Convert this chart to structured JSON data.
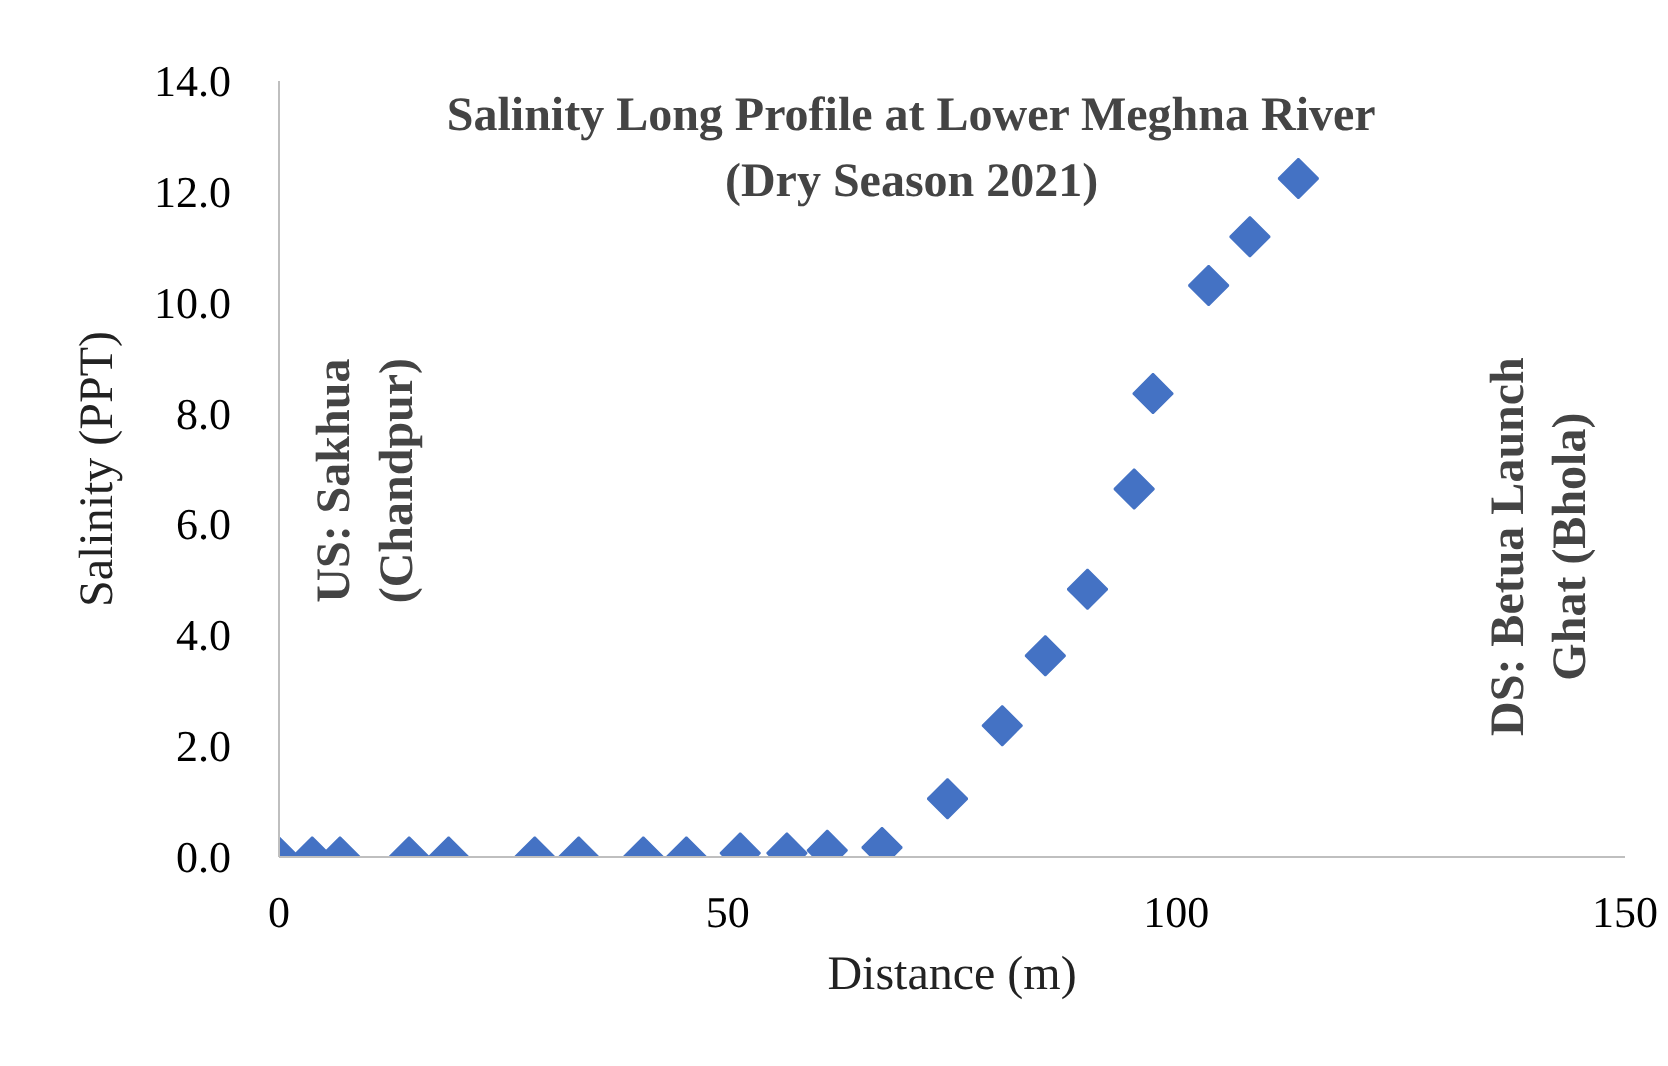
{
  "chart_data": {
    "type": "scatter",
    "title": "Salinity Long Profile at Lower Meghna River",
    "subtitle": "(Dry Season 2021)",
    "xlabel": "Distance (m)",
    "ylabel": "Salinity (PPT)",
    "x": [
      0,
      3.7,
      6.8,
      14.5,
      18.9,
      28.5,
      33.4,
      40.6,
      45.4,
      51.4,
      56.6,
      61.1,
      67.2,
      74.5,
      80.6,
      85.4,
      90.1,
      95.3,
      97.4,
      103.6,
      108.2,
      113.6
    ],
    "series": [
      {
        "color": "#4472c4",
        "values": [
          0,
          0,
          0,
          0,
          0,
          0,
          0,
          0,
          0,
          0.07,
          0.07,
          0.12,
          0.17,
          1.05,
          2.37,
          3.63,
          4.83,
          6.64,
          8.36,
          10.31,
          11.19,
          12.24
        ]
      }
    ],
    "xlim": [
      0,
      150
    ],
    "xticks": [
      0,
      50,
      100,
      150
    ],
    "ylim": [
      0,
      14
    ],
    "yticks": [
      {
        "value": 0,
        "label": "0.0"
      },
      {
        "value": 2,
        "label": "2.0"
      },
      {
        "value": 4,
        "label": "4.0"
      },
      {
        "value": 6,
        "label": "6.0"
      },
      {
        "value": 8,
        "label": "8.0"
      },
      {
        "value": 10,
        "label": "10.0"
      },
      {
        "value": 12,
        "label": "12.0"
      },
      {
        "value": 14,
        "label": "14.0"
      }
    ],
    "annotations": [
      "US: Sakhua\n(Chandpur)",
      "DS: Betua Launch\nGhat (Bhola)"
    ],
    "marker": "diamond",
    "grid": false
  }
}
